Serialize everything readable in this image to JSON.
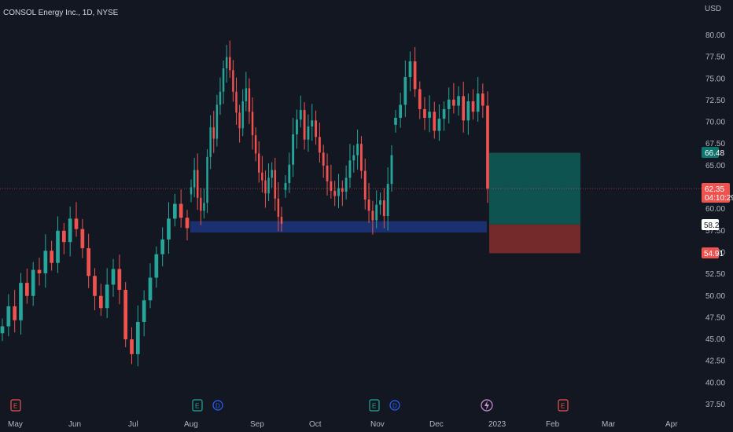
{
  "header": {
    "title": "CONSOL Energy Inc., 1D, NYSE",
    "currency": "USD"
  },
  "colors": {
    "background": "#131722",
    "up": "#26a69a",
    "down": "#ef5350",
    "zone": "#1e3a8a",
    "target": "#0f5a55",
    "stop": "#7f2b2b"
  },
  "price_tags": {
    "target": "66.48",
    "current": "62.35",
    "countdown": "04:10:29",
    "entry": "58.22",
    "stop": "54.91"
  },
  "event_markers": [
    {
      "label": "E",
      "date": "May 2",
      "color": "#ef5350",
      "icon": "earnings-icon"
    },
    {
      "label": "E",
      "date": "Aug 2",
      "color": "#26a69a",
      "icon": "earnings-icon"
    },
    {
      "label": "D",
      "date": "Aug 15",
      "color": "#2962ff",
      "icon": "dividend-icon"
    },
    {
      "label": "E",
      "date": "Nov 1",
      "color": "#26a69a",
      "icon": "earnings-icon"
    },
    {
      "label": "D",
      "date": "Nov 14",
      "color": "#2962ff",
      "icon": "dividend-icon"
    },
    {
      "label": "",
      "date": "Dec 28",
      "color": "#ce93d8",
      "icon": "lightning-icon"
    },
    {
      "label": "E",
      "date": "Feb 7",
      "color": "#ef5350",
      "icon": "earnings-icon"
    }
  ],
  "chart_data": {
    "type": "candlestick",
    "title": "CONSOL Energy Inc., 1D, NYSE",
    "ylabel": "USD",
    "ylim": [
      37.5,
      80.0
    ],
    "y_ticks": [
      "37.50",
      "40.00",
      "42.50",
      "45.00",
      "47.50",
      "50.00",
      "52.50",
      "55.00",
      "57.50",
      "60.00",
      "62.50",
      "65.00",
      "67.50",
      "70.00",
      "72.50",
      "75.00",
      "77.50",
      "80.00"
    ],
    "x_ticks": [
      "May",
      "Jun",
      "Jul",
      "Aug",
      "Sep",
      "Oct",
      "Nov",
      "Dec",
      "2023",
      "Feb",
      "Mar",
      "Apr"
    ],
    "series": [
      {
        "segment": "2022-05-02 to 2022-08-01",
        "close": [
          46.5,
          48.8,
          47.2,
          51.5,
          50.0,
          53.0,
          52.6,
          55.2,
          53.8,
          57.5,
          56.2,
          58.9,
          57.7,
          55.5,
          52.3,
          50.0,
          48.6,
          51.3,
          53.1,
          50.7,
          45.0,
          43.3,
          47.0,
          49.5,
          52.1,
          54.8,
          56.5,
          58.9,
          60.6,
          59.0,
          57.8
        ]
      },
      {
        "segment": "2022-08-02 to 2022-09-28",
        "close": [
          62.5,
          64.5,
          61.3,
          59.8,
          60.7,
          66.0,
          69.4,
          68.1,
          72.0,
          73.5,
          76.2,
          77.5,
          76.0,
          73.5,
          71.1,
          69.3,
          72.4,
          73.9,
          71.2,
          68.5,
          66.4,
          64.2,
          63.3,
          61.8,
          63.6,
          64.5,
          61.2,
          59.1,
          58.3
        ]
      },
      {
        "segment": "2022-09-29 to 2022-11-25",
        "close": [
          63.0,
          65.1,
          68.6,
          70.3,
          71.4,
          68.0,
          69.5,
          70.2,
          68.3,
          66.5,
          65.0,
          63.2,
          62.1,
          61.5,
          62.4,
          62.0,
          63.6,
          65.6,
          66.2,
          67.5,
          64.4,
          61.1,
          59.8,
          58.7,
          60.5,
          61.0,
          59.2,
          62.9,
          66.2
        ]
      },
      {
        "segment": "2022-11-28 to 2022-12-28",
        "close": [
          70.5,
          72.0,
          75.2,
          77.0,
          73.8,
          71.5,
          70.5,
          71.2,
          69.0,
          70.4,
          71.5,
          72.6,
          71.9,
          73.0,
          70.2,
          72.4,
          71.2,
          73.3,
          71.9,
          62.35
        ]
      }
    ],
    "annotations": {
      "support_zone": {
        "top": 58.6,
        "bottom": 57.3,
        "from": "2022-08-01",
        "to": "2022-12-28"
      },
      "long_position": {
        "entry": 58.22,
        "target": 66.48,
        "stop": 54.91,
        "from": "2022-12-29",
        "to": "2023-02-14"
      },
      "last_price": 62.35
    }
  }
}
